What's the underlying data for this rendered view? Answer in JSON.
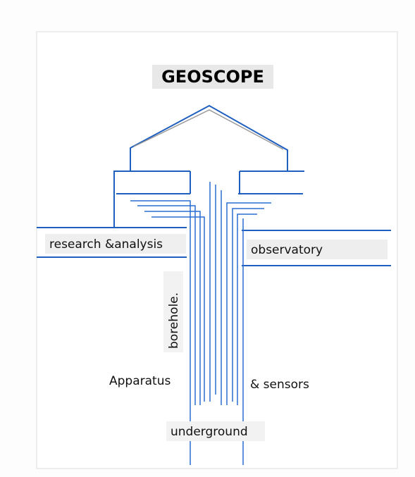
{
  "header": {
    "title": "GEOSCOPE"
  },
  "labels": {
    "left_building": "research &analysis",
    "right_building": "observatory",
    "borehole": "borehole.",
    "left_apparatus": "Apparatus",
    "right_apparatus": "& sensors",
    "bottom": "underground"
  }
}
